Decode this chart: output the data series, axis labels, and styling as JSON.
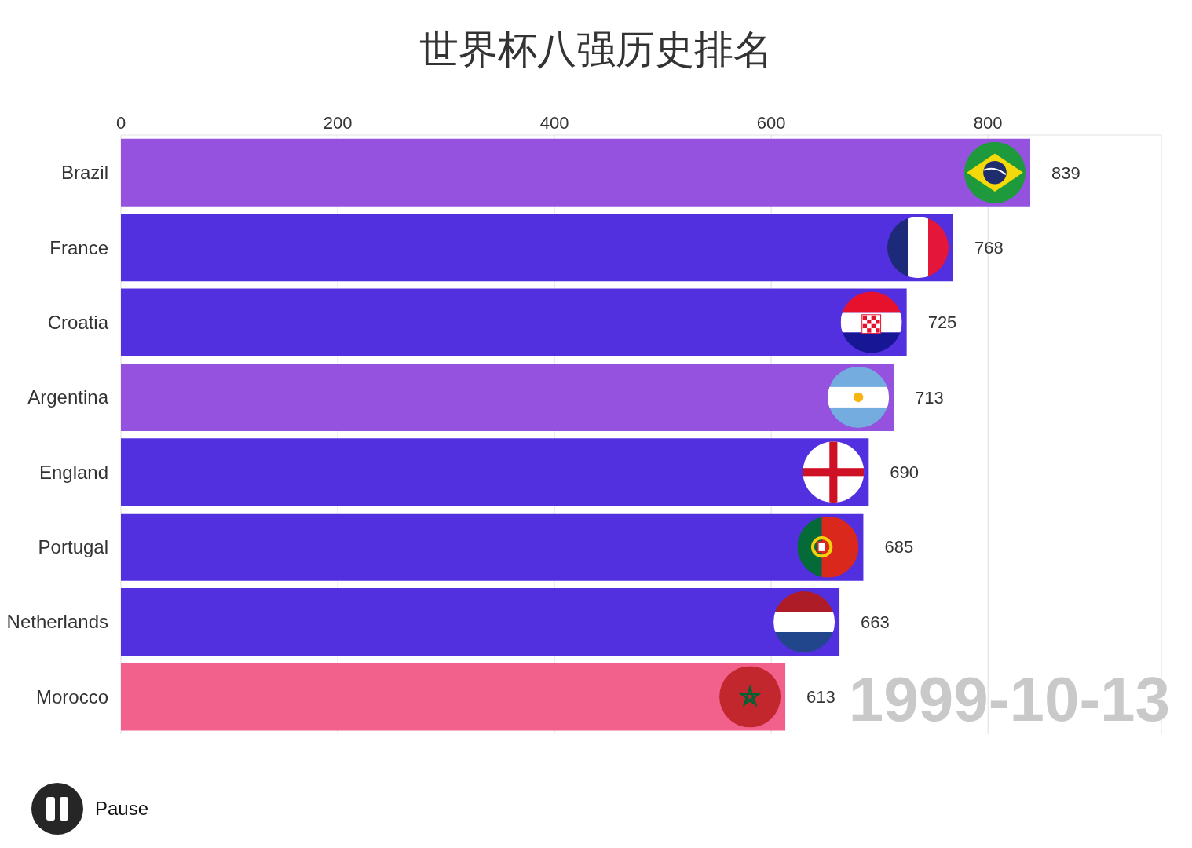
{
  "chart_data": {
    "type": "bar",
    "orientation": "horizontal",
    "title": "世界杯八强历史排名",
    "categories": [
      "Brazil",
      "France",
      "Croatia",
      "Argentina",
      "England",
      "Portugal",
      "Netherlands",
      "Morocco"
    ],
    "values": [
      839,
      768,
      725,
      713,
      690,
      685,
      663,
      613
    ],
    "colors": [
      "#9452de",
      "#5230e0",
      "#5230e0",
      "#9452de",
      "#5230e0",
      "#5230e0",
      "#5230e0",
      "#f2608c"
    ],
    "xlim": [
      0,
      960
    ],
    "xticks": [
      0,
      200,
      400,
      600,
      800
    ],
    "grid": "x",
    "data_labels": true,
    "annotations": [
      "1999-10-13",
      "Pause"
    ]
  }
}
